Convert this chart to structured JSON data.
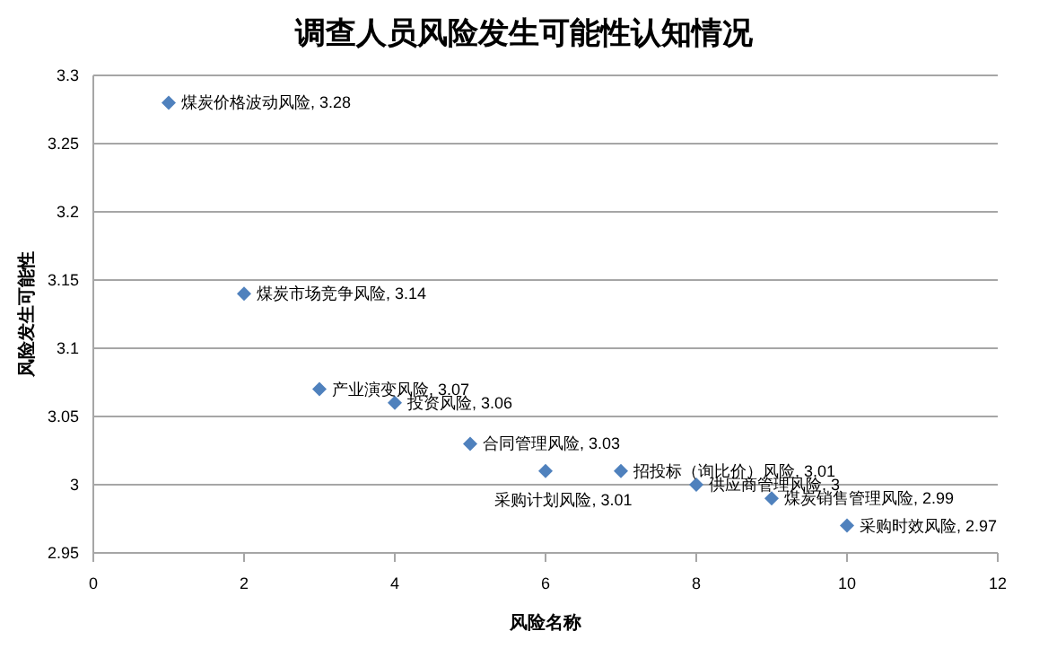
{
  "chart_data": {
    "type": "scatter",
    "title": "调查人员风险发生可能性认知情况",
    "xlabel": "风险名称",
    "ylabel": "风险发生可能性",
    "x": [
      1,
      2,
      3,
      4,
      5,
      6,
      7,
      8,
      9,
      10
    ],
    "values": [
      3.28,
      3.14,
      3.07,
      3.06,
      3.03,
      3.01,
      3.01,
      3.0,
      2.99,
      2.97
    ],
    "color": "#4f81bd",
    "marker": "diamond",
    "grid": "y",
    "xlim": [
      0,
      12
    ],
    "xticks": [
      0,
      2,
      4,
      6,
      8,
      10,
      12
    ],
    "ylim": [
      2.95,
      3.3
    ],
    "yticks": [
      2.95,
      3,
      3.05,
      3.1,
      3.15,
      3.2,
      3.25,
      3.3
    ],
    "annotations": [
      {
        "text": "煤炭价格波动风险, 3.28",
        "x": 1,
        "y": 3.28
      },
      {
        "text": "煤炭市场竞争风险, 3.14",
        "x": 2,
        "y": 3.14
      },
      {
        "text": "产业演变风险, 3.07",
        "x": 3,
        "y": 3.07
      },
      {
        "text": "投资风险, 3.06",
        "x": 4,
        "y": 3.06
      },
      {
        "text": "合同管理风险, 3.03",
        "x": 5,
        "y": 3.03
      },
      {
        "text": "采购计划风险, 3.01",
        "x": 6,
        "y": 3.01
      },
      {
        "text": "招投标（询比价）风险, 3.01",
        "x": 7,
        "y": 3.01
      },
      {
        "text": "供应商管理风险, 3",
        "x": 8,
        "y": 3.0
      },
      {
        "text": "煤炭销售管理风险, 2.99",
        "x": 9,
        "y": 2.99
      },
      {
        "text": "采购时效风险, 2.97",
        "x": 10,
        "y": 2.97
      }
    ]
  }
}
